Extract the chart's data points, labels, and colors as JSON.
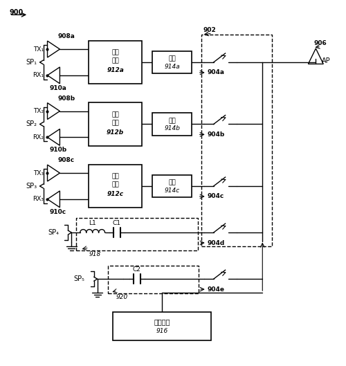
{
  "title": "",
  "bg_color": "#ffffff",
  "fig_width": 5.0,
  "fig_height": 5.29,
  "dpi": 100,
  "label_900": "900",
  "label_902": "902",
  "label_906": "906",
  "label_AP": "AP",
  "label_916": "916",
  "label_918": "918",
  "label_920": "920",
  "label_control": "控制单元",
  "sp_labels": [
    "SP₁",
    "SP₂",
    "SP₃",
    "SP₄",
    "SP₅"
  ],
  "filter_line1": [
    "滤波",
    "滤波",
    "滤波"
  ],
  "filter_line2": [
    "元件",
    "元件",
    "元件"
  ],
  "filter_line3": [
    "912a",
    "912b",
    "912c"
  ],
  "match_line1": [
    "匹配",
    "匹配",
    "匹配"
  ],
  "match_line2": [
    "914a",
    "914b",
    "914c"
  ],
  "tx_labels": [
    "TX₁",
    "TX₂",
    "TX₃"
  ],
  "rx_labels": [
    "RX₁",
    "RX₂",
    "RX₃"
  ],
  "duplexer_labels": [
    "908a",
    "908b",
    "908c"
  ],
  "switch_labels": [
    "910a",
    "910b",
    "910c"
  ],
  "port_labels": [
    "904a",
    "904b",
    "904c",
    "904d",
    "904e"
  ],
  "L1": "L1",
  "C1": "C1",
  "C2": "C2"
}
